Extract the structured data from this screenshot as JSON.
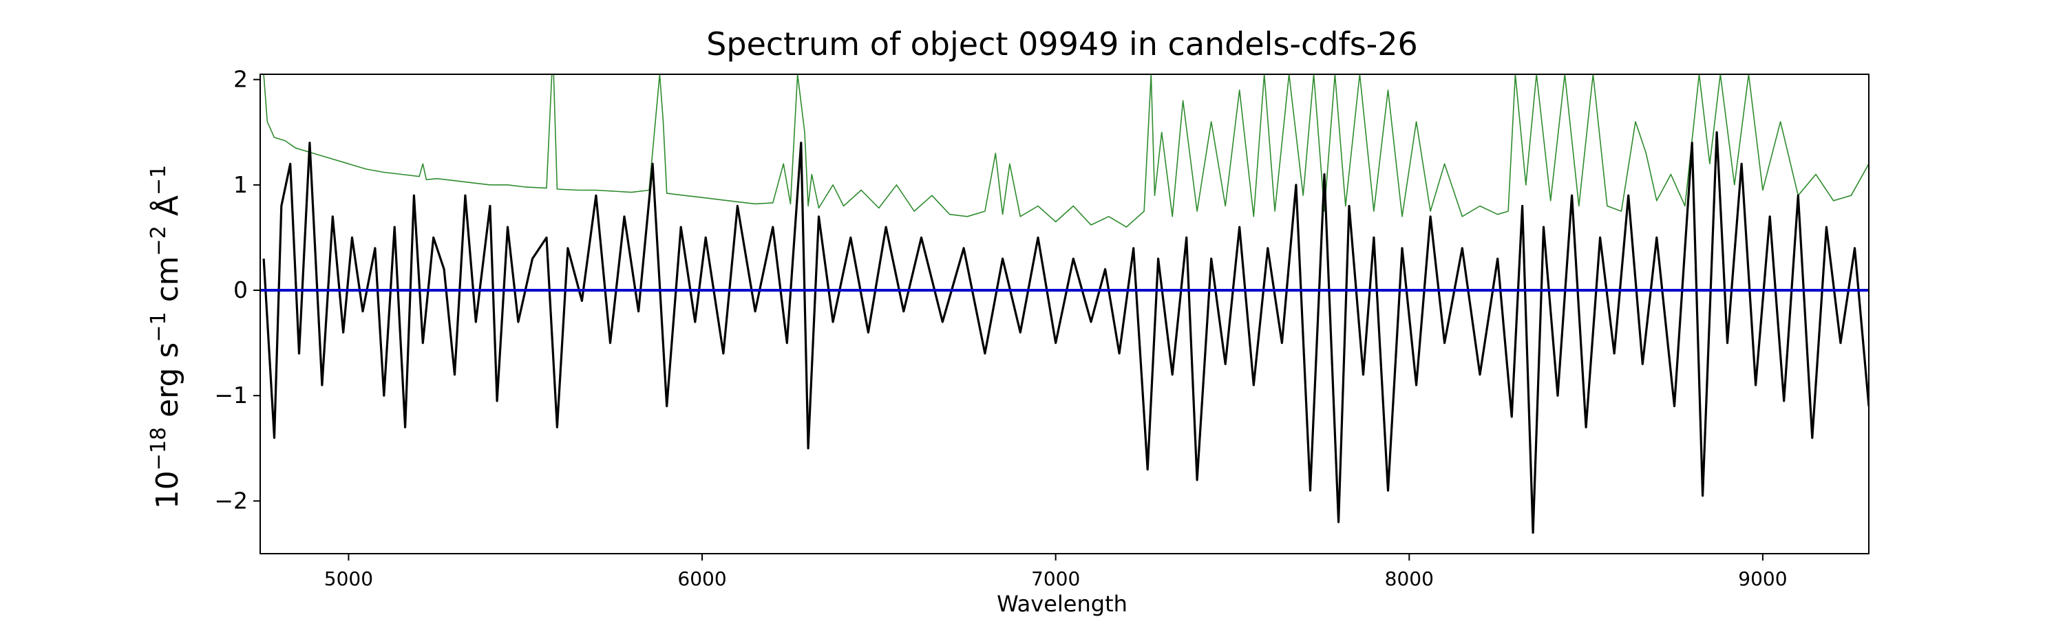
{
  "chart_data": {
    "type": "line",
    "title": "Spectrum of object 09949 in candels-cdfs-26",
    "xlabel": "Wavelength",
    "ylabel_parts": [
      "10",
      "−18",
      " erg s",
      "−1",
      " cm",
      "−2",
      " Å",
      "−1"
    ],
    "xlim": [
      4750,
      9300
    ],
    "ylim": [
      -2.5,
      2.05
    ],
    "xticks": [
      5000,
      6000,
      7000,
      8000,
      9000
    ],
    "yticks": [
      -2,
      -1,
      0,
      1,
      2
    ],
    "ytick_labels": [
      "−2",
      "−1",
      "0",
      "1",
      "2"
    ],
    "grid": false,
    "legend": "none",
    "series": [
      {
        "role": "flux",
        "color": "#000000",
        "x": [
          4760,
          4790,
          4810,
          4835,
          4860,
          4890,
          4925,
          4955,
          4985,
          5010,
          5040,
          5075,
          5100,
          5130,
          5160,
          5185,
          5210,
          5240,
          5270,
          5300,
          5330,
          5360,
          5400,
          5420,
          5450,
          5480,
          5520,
          5560,
          5590,
          5620,
          5660,
          5700,
          5740,
          5780,
          5820,
          5860,
          5900,
          5940,
          5980,
          6010,
          6060,
          6100,
          6150,
          6200,
          6240,
          6280,
          6300,
          6330,
          6370,
          6420,
          6470,
          6520,
          6570,
          6620,
          6680,
          6740,
          6800,
          6850,
          6900,
          6950,
          7000,
          7050,
          7100,
          7140,
          7180,
          7220,
          7260,
          7290,
          7330,
          7370,
          7400,
          7440,
          7480,
          7520,
          7560,
          7600,
          7640,
          7680,
          7720,
          7760,
          7800,
          7830,
          7870,
          7900,
          7940,
          7980,
          8020,
          8060,
          8100,
          8150,
          8200,
          8250,
          8290,
          8320,
          8350,
          8380,
          8420,
          8460,
          8500,
          8540,
          8580,
          8620,
          8660,
          8700,
          8750,
          8800,
          8830,
          8870,
          8900,
          8940,
          8980,
          9020,
          9060,
          9100,
          9140,
          9180,
          9220,
          9260,
          9300
        ],
        "y": [
          0.3,
          -1.4,
          0.8,
          1.2,
          -0.6,
          1.4,
          -0.9,
          0.7,
          -0.4,
          0.5,
          -0.2,
          0.4,
          -1.0,
          0.6,
          -1.3,
          0.9,
          -0.5,
          0.5,
          0.2,
          -0.8,
          0.9,
          -0.3,
          0.8,
          -1.05,
          0.6,
          -0.3,
          0.3,
          0.5,
          -1.3,
          0.4,
          -0.1,
          0.9,
          -0.5,
          0.7,
          -0.2,
          1.2,
          -1.1,
          0.6,
          -0.3,
          0.5,
          -0.6,
          0.8,
          -0.2,
          0.6,
          -0.5,
          1.4,
          -1.5,
          0.7,
          -0.3,
          0.5,
          -0.4,
          0.6,
          -0.2,
          0.5,
          -0.3,
          0.4,
          -0.6,
          0.3,
          -0.4,
          0.5,
          -0.5,
          0.3,
          -0.3,
          0.2,
          -0.6,
          0.4,
          -1.7,
          0.3,
          -0.8,
          0.5,
          -1.8,
          0.3,
          -0.7,
          0.6,
          -0.9,
          0.4,
          -0.5,
          1.0,
          -1.9,
          1.1,
          -2.2,
          0.8,
          -0.8,
          0.5,
          -1.9,
          0.4,
          -0.9,
          0.7,
          -0.5,
          0.4,
          -0.8,
          0.3,
          -1.2,
          0.8,
          -2.3,
          0.6,
          -1.0,
          0.9,
          -1.3,
          0.5,
          -0.6,
          0.9,
          -0.7,
          0.5,
          -1.1,
          1.4,
          -1.95,
          1.5,
          -0.5,
          1.2,
          -0.9,
          0.7,
          -1.05,
          0.9,
          -1.4,
          0.6,
          -0.5,
          0.4,
          -1.1
        ]
      },
      {
        "role": "error",
        "color": "#2e8b2e",
        "x": [
          4750,
          4760,
          4770,
          4790,
          4820,
          4850,
          4900,
          4950,
          5000,
          5050,
          5100,
          5150,
          5200,
          5210,
          5220,
          5250,
          5300,
          5350,
          5400,
          5450,
          5500,
          5560,
          5575,
          5580,
          5590,
          5650,
          5700,
          5750,
          5800,
          5850,
          5880,
          5890,
          5900,
          5950,
          6000,
          6050,
          6100,
          6150,
          6200,
          6230,
          6250,
          6270,
          6290,
          6300,
          6310,
          6330,
          6370,
          6400,
          6450,
          6500,
          6550,
          6600,
          6650,
          6700,
          6750,
          6800,
          6830,
          6850,
          6870,
          6900,
          6950,
          7000,
          7050,
          7100,
          7150,
          7200,
          7250,
          7270,
          7280,
          7300,
          7330,
          7360,
          7400,
          7440,
          7480,
          7520,
          7560,
          7590,
          7620,
          7660,
          7700,
          7730,
          7760,
          7790,
          7820,
          7860,
          7900,
          7940,
          7980,
          8020,
          8060,
          8100,
          8150,
          8200,
          8250,
          8280,
          8300,
          8330,
          8360,
          8400,
          8440,
          8480,
          8520,
          8560,
          8600,
          8640,
          8670,
          8700,
          8740,
          8780,
          8820,
          8850,
          8880,
          8920,
          8960,
          9000,
          9050,
          9100,
          9150,
          9200,
          9250,
          9300
        ],
        "y": [
          2.05,
          2.05,
          1.6,
          1.45,
          1.42,
          1.35,
          1.3,
          1.25,
          1.2,
          1.15,
          1.12,
          1.1,
          1.08,
          1.2,
          1.05,
          1.06,
          1.04,
          1.02,
          1.0,
          1.0,
          0.98,
          0.97,
          2.05,
          2.05,
          0.96,
          0.95,
          0.95,
          0.94,
          0.93,
          0.95,
          2.05,
          1.6,
          0.92,
          0.9,
          0.88,
          0.86,
          0.84,
          0.82,
          0.83,
          1.2,
          0.82,
          2.05,
          1.5,
          0.8,
          1.1,
          0.78,
          1.0,
          0.8,
          0.95,
          0.78,
          1.0,
          0.75,
          0.9,
          0.72,
          0.7,
          0.75,
          1.3,
          0.72,
          1.2,
          0.7,
          0.8,
          0.65,
          0.8,
          0.62,
          0.7,
          0.6,
          0.75,
          2.05,
          0.9,
          1.5,
          0.7,
          1.8,
          0.75,
          1.6,
          0.8,
          1.9,
          0.7,
          2.05,
          0.75,
          2.05,
          0.9,
          2.05,
          0.75,
          2.05,
          0.8,
          2.05,
          0.75,
          1.9,
          0.7,
          1.6,
          0.75,
          1.2,
          0.7,
          0.8,
          0.72,
          0.75,
          2.05,
          1.0,
          2.05,
          0.85,
          2.05,
          0.8,
          2.05,
          0.8,
          0.75,
          1.6,
          1.3,
          0.85,
          1.1,
          0.8,
          2.05,
          1.2,
          2.05,
          1.0,
          2.05,
          0.95,
          1.6,
          0.9,
          1.1,
          0.85,
          0.9,
          1.2
        ]
      },
      {
        "role": "model",
        "color": "#0000cc",
        "x": [
          4750,
          9300
        ],
        "y": [
          0.0,
          0.0
        ]
      }
    ]
  }
}
